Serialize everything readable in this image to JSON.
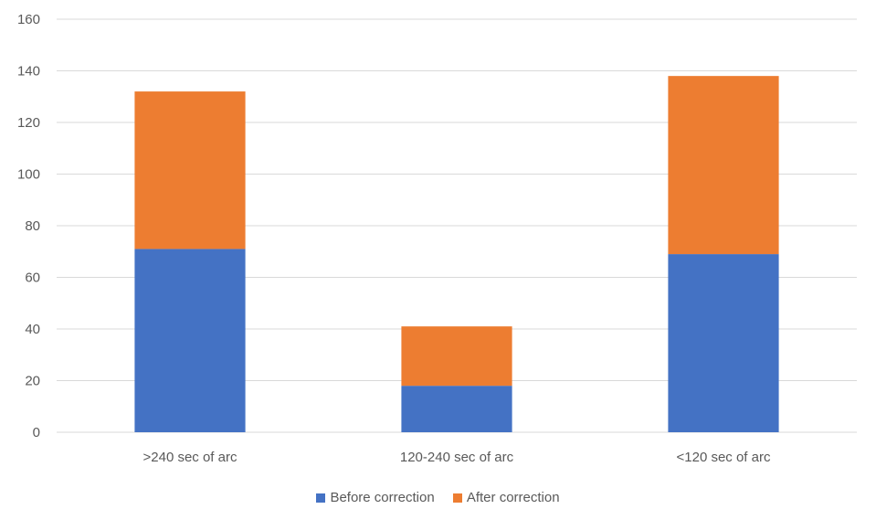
{
  "chart_data": {
    "type": "bar",
    "stacked": true,
    "title": "",
    "xlabel": "",
    "ylabel": "",
    "categories": [
      ">240 sec of arc",
      "120-240 sec of arc",
      "<120 sec of arc"
    ],
    "series": [
      {
        "name": "Before correction",
        "color": "#4472c4",
        "values": [
          71,
          18,
          69
        ]
      },
      {
        "name": "After correction",
        "color": "#ed7d31",
        "values": [
          61,
          23,
          69
        ]
      }
    ],
    "ylim": [
      0,
      160
    ],
    "yticks": [
      0,
      20,
      40,
      60,
      80,
      100,
      120,
      140,
      160
    ],
    "grid": true,
    "legend": "bottom-center"
  }
}
